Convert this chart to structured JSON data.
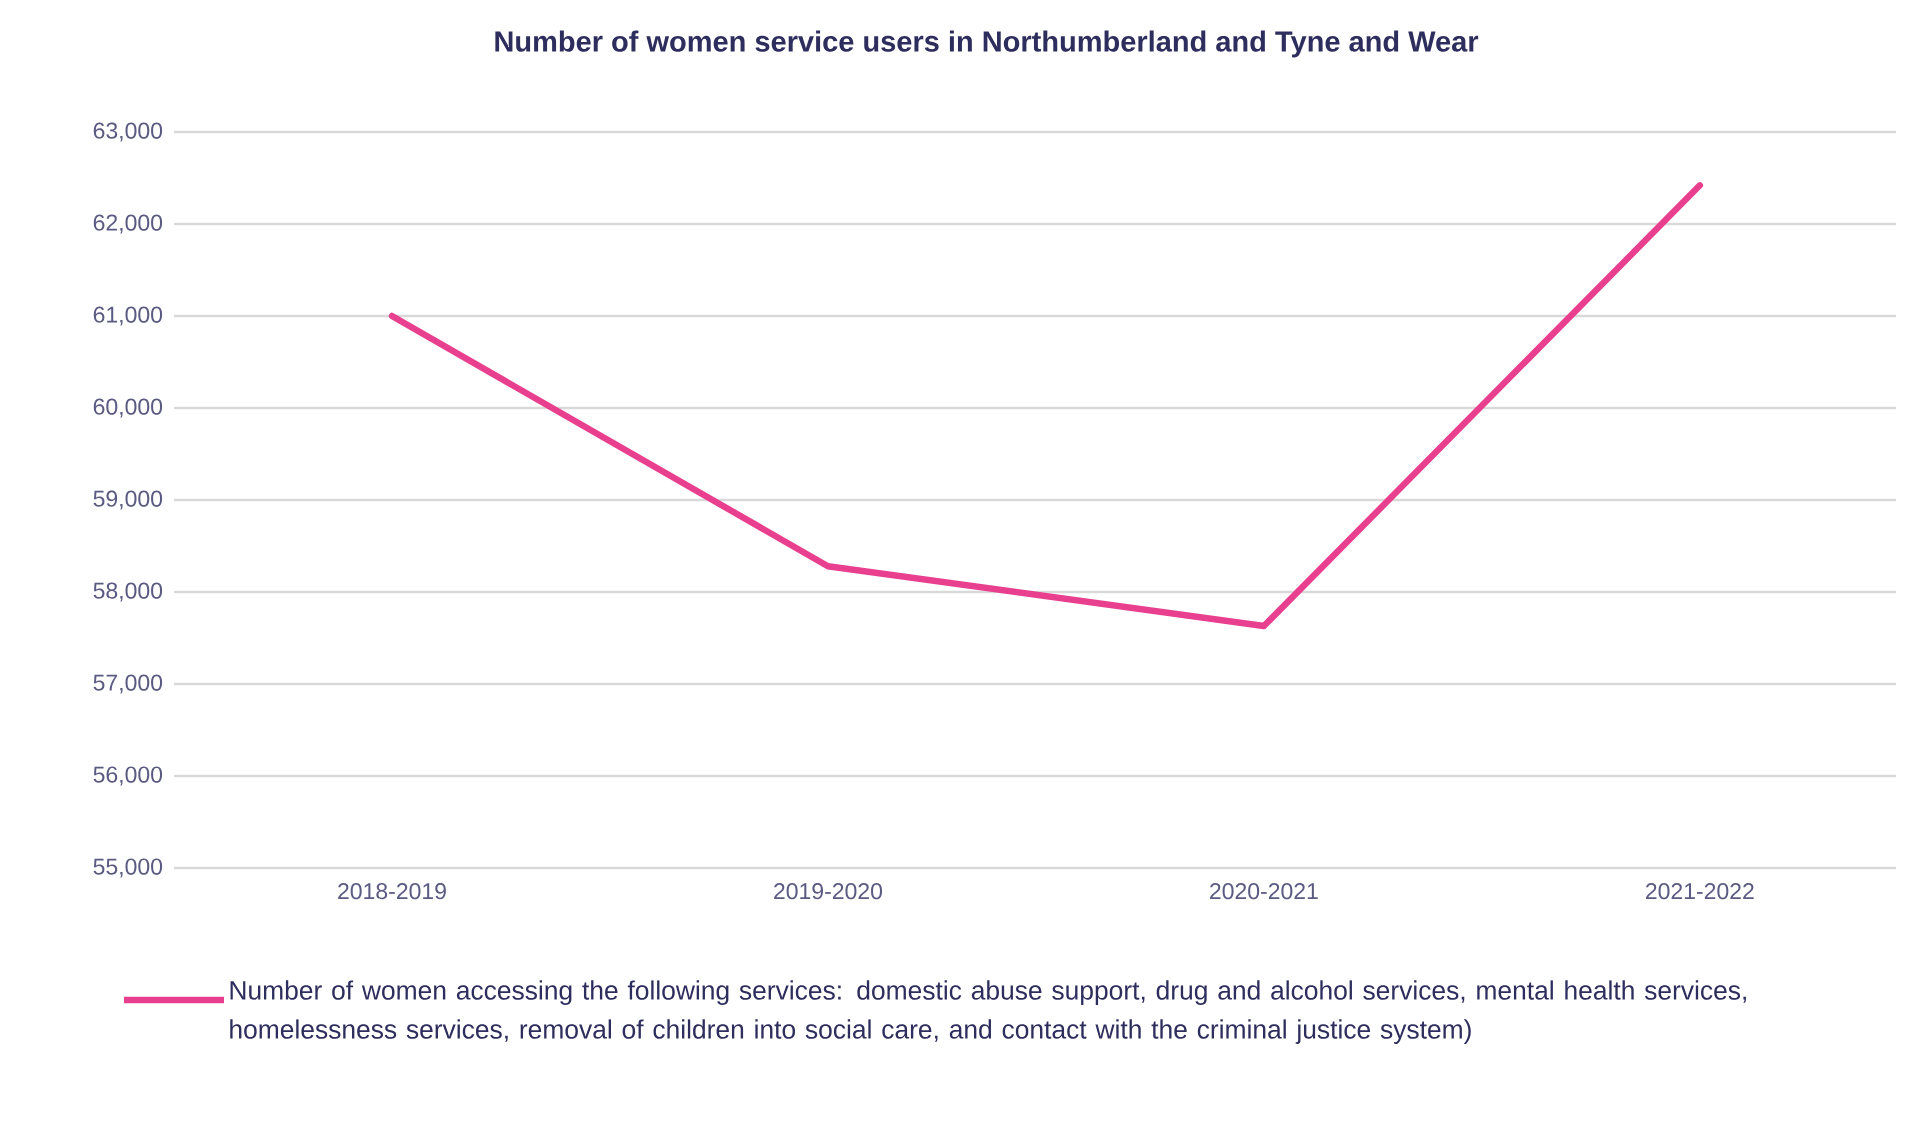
{
  "chart_data": {
    "type": "line",
    "title": "Number of women service users in Northumberland and Tyne and Wear",
    "categories": [
      "2018-2019",
      "2019-2020",
      "2020-2021",
      "2021-2022"
    ],
    "series": [
      {
        "name": "Number of women accessing the following services: domestic abuse support, drug and alcohol services, mental health services, homelessness services, removal of children into social care, and contact with the criminal justice system)",
        "color": "#e8408f",
        "values": [
          61000,
          58280,
          57630,
          62420
        ]
      }
    ],
    "ylim": [
      55000,
      63000
    ],
    "yticks": [
      {
        "value": 55000,
        "label": "55,000"
      },
      {
        "value": 56000,
        "label": "56,000"
      },
      {
        "value": 57000,
        "label": "57,000"
      },
      {
        "value": 58000,
        "label": "58,000"
      },
      {
        "value": 59000,
        "label": "59,000"
      },
      {
        "value": 60000,
        "label": "60,000"
      },
      {
        "value": 61000,
        "label": "61,000"
      },
      {
        "value": 62000,
        "label": "62,000"
      },
      {
        "value": 63000,
        "label": "63,000"
      }
    ],
    "grid": "y",
    "legend": "bottom",
    "marker": "none",
    "line_style": "solid"
  }
}
